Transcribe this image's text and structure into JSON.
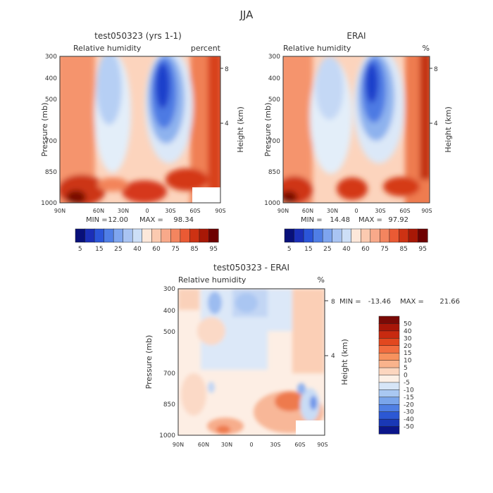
{
  "figure": {
    "suptitle": "JJA"
  },
  "chart_data": [
    {
      "type": "heatmap",
      "title": "test050323 (yrs 1-1)",
      "left_label": "Relative humidity",
      "right_label": "percent",
      "xlabel": "",
      "ylabel": "Pressure (mb)",
      "ylabel_right": "Height (km)",
      "x_ticks": [
        "90N",
        "60N",
        "30N",
        "0",
        "30S",
        "60S",
        "90S"
      ],
      "x_range": [
        90,
        -90
      ],
      "y_ticks": [
        "300",
        "400",
        "500",
        "700",
        "850",
        "1000"
      ],
      "y_tick_values": [
        300,
        400,
        500,
        700,
        850,
        1000
      ],
      "y_range": [
        300,
        1000
      ],
      "y_scale": "log",
      "height_ticks": [
        "8",
        "4"
      ],
      "height_tick_values": [
        8,
        4
      ],
      "stats": {
        "min_label": "MIN =",
        "min": "12.00",
        "max_label": "MAX =",
        "max": "98.34"
      },
      "colorbar_labels": [
        "5",
        "15",
        "25",
        "40",
        "60",
        "75",
        "85",
        "95"
      ],
      "colorbar_colors": [
        "#08107a",
        "#1b2fb8",
        "#2b55d9",
        "#4f7ee6",
        "#7ea5ef",
        "#a9c4f3",
        "#cddff7",
        "#fde8da",
        "#fbcab0",
        "#f8a98a",
        "#f3855f",
        "#ea5a34",
        "#cd3213",
        "#a81806",
        "#6e0000"
      ],
      "note": "field values in percent relative humidity; lat axis 90N to 90S"
    },
    {
      "type": "heatmap",
      "title": "ERAI",
      "left_label": "Relative humidity",
      "right_label": "%",
      "ylabel": "Pressure (mb)",
      "ylabel_right": "Height (km)",
      "x_ticks": [
        "90N",
        "60N",
        "30N",
        "0",
        "30S",
        "60S",
        "90S"
      ],
      "x_range": [
        90,
        -90
      ],
      "y_ticks": [
        "300",
        "400",
        "500",
        "700",
        "850",
        "1000"
      ],
      "y_tick_values": [
        300,
        400,
        500,
        700,
        850,
        1000
      ],
      "y_range": [
        300,
        1000
      ],
      "y_scale": "log",
      "height_ticks": [
        "8",
        "4"
      ],
      "height_tick_values": [
        8,
        4
      ],
      "stats": {
        "min_label": "MIN =",
        "min": "14.48",
        "max_label": "MAX =",
        "max": "97.92"
      },
      "colorbar_labels": [
        "5",
        "15",
        "25",
        "40",
        "60",
        "75",
        "85",
        "95"
      ],
      "colorbar_colors": [
        "#08107a",
        "#1b2fb8",
        "#2b55d9",
        "#4f7ee6",
        "#7ea5ef",
        "#a9c4f3",
        "#cddff7",
        "#fde8da",
        "#fbcab0",
        "#f8a98a",
        "#f3855f",
        "#ea5a34",
        "#cd3213",
        "#a81806",
        "#6e0000"
      ]
    },
    {
      "type": "heatmap",
      "title": "test050323 - ERAI",
      "left_label": "Relative humidity",
      "right_label": "%",
      "ylabel": "Pressure (mb)",
      "ylabel_right": "Height (km)",
      "x_ticks": [
        "90N",
        "60N",
        "30N",
        "0",
        "30S",
        "60S",
        "90S"
      ],
      "x_range": [
        90,
        -90
      ],
      "y_ticks": [
        "300",
        "400",
        "500",
        "700",
        "850",
        "1000"
      ],
      "y_tick_values": [
        300,
        400,
        500,
        700,
        850,
        1000
      ],
      "y_range": [
        300,
        1000
      ],
      "y_scale": "log",
      "height_ticks": [
        "8",
        "4"
      ],
      "height_tick_values": [
        8,
        4
      ],
      "stats": {
        "min_label": "MIN =",
        "min": "-13.46",
        "max_label": "MAX =",
        "max": "21.66"
      },
      "colorbar_labels": [
        "50",
        "40",
        "30",
        "20",
        "15",
        "10",
        "5",
        "0",
        "-5",
        "-10",
        "-15",
        "-20",
        "-30",
        "-40",
        "-50"
      ],
      "colorbar_colors": [
        "#7a0a06",
        "#a81608",
        "#c82a10",
        "#e2481f",
        "#f26d3f",
        "#f7925e",
        "#f9b38c",
        "#fcd6bf",
        "#fdf0e6",
        "#d6e5f7",
        "#a9c8f2",
        "#7aa5eb",
        "#4f7fe4",
        "#2c58d4",
        "#1938b6",
        "#0b168a"
      ]
    }
  ]
}
